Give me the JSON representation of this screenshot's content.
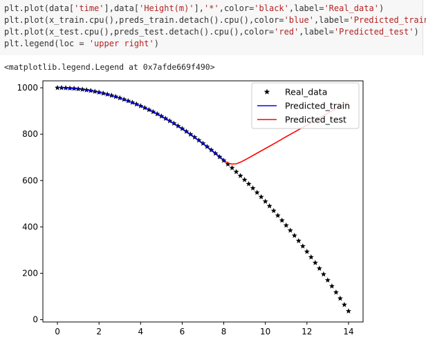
{
  "code": {
    "lines": [
      [
        "plt.plot(data[",
        "'time'",
        "],data[",
        "'Height(m)'",
        "],",
        "'*'",
        ",color=",
        "'black'",
        ",label=",
        "'Real_data'",
        ")"
      ],
      [
        "plt.plot(x_train.cpu(),preds_train.detach().cpu(),color=",
        "'blue'",
        ",label=",
        "'Predicted_train'",
        ")"
      ],
      [
        "plt.plot(x_test.cpu(),preds_test.detach().cpu(),color=",
        "'red'",
        ",label=",
        "'Predicted_test'",
        ")"
      ],
      [
        "plt.legend(loc = ",
        "'upper right'",
        ")"
      ]
    ]
  },
  "output": {
    "repr": "<matplotlib.legend.Legend at 0x7afde669f490>"
  },
  "chart_data": {
    "type": "line",
    "title": "",
    "xlabel": "",
    "ylabel": "",
    "xlim": [
      -0.7,
      14.7
    ],
    "ylim": [
      -10,
      1030
    ],
    "xticks": [
      0,
      2,
      4,
      6,
      8,
      10,
      12,
      14
    ],
    "yticks": [
      0,
      200,
      400,
      600,
      800,
      1000
    ],
    "grid": false,
    "legend": {
      "placement": "upper right",
      "entries": [
        "Real_data",
        "Predicted_train",
        "Predicted_test"
      ]
    },
    "series": [
      {
        "name": "Real_data",
        "marker": "*",
        "color": "#000000",
        "x": [
          0.0,
          0.2,
          0.4,
          0.6,
          0.8,
          1.0,
          1.2,
          1.4,
          1.6,
          1.8,
          2.0,
          2.2,
          2.4,
          2.6,
          2.8,
          3.0,
          3.2,
          3.4,
          3.6,
          3.8,
          4.0,
          4.2,
          4.4,
          4.6,
          4.8,
          5.0,
          5.2,
          5.4,
          5.6,
          5.8,
          6.0,
          6.2,
          6.4,
          6.6,
          6.8,
          7.0,
          7.2,
          7.4,
          7.6,
          7.8,
          8.0,
          8.2,
          8.4,
          8.6,
          8.8,
          9.0,
          9.2,
          9.4,
          9.6,
          9.8,
          10.0,
          10.2,
          10.4,
          10.6,
          10.8,
          11.0,
          11.2,
          11.4,
          11.6,
          11.8,
          12.0,
          12.2,
          12.4,
          12.6,
          12.8,
          13.0,
          13.2,
          13.4,
          13.6,
          13.8,
          14.0
        ],
        "y": [
          1000.0,
          999.8,
          999.2,
          998.2,
          996.9,
          995.1,
          993.0,
          990.4,
          987.5,
          984.1,
          980.4,
          976.3,
          971.8,
          966.9,
          961.6,
          955.9,
          949.8,
          943.4,
          936.5,
          929.2,
          921.6,
          913.6,
          905.1,
          896.3,
          887.1,
          877.5,
          867.5,
          857.1,
          846.4,
          835.2,
          823.6,
          811.6,
          799.3,
          786.5,
          773.4,
          759.9,
          745.9,
          731.6,
          716.9,
          701.8,
          686.4,
          670.5,
          654.3,
          637.6,
          620.6,
          603.1,
          585.2,
          567.0,
          548.3,
          529.3,
          509.8,
          490.0,
          469.7,
          449.1,
          428.0,
          406.6,
          384.8,
          362.5,
          339.9,
          316.8,
          293.4,
          269.6,
          245.3,
          220.7,
          195.7,
          170.2,
          144.3,
          118.0,
          91.4,
          64.3,
          36.8
        ]
      },
      {
        "name": "Predicted_train",
        "color": "#0000ff",
        "x": [
          0,
          0.5,
          1,
          1.5,
          2,
          2.5,
          3,
          3.5,
          4,
          4.5,
          5,
          5.5,
          6,
          6.5,
          7,
          7.5,
          8,
          8.1
        ],
        "y": [
          1002,
          999,
          995,
          989,
          981,
          969,
          956,
          940,
          922,
          902,
          878,
          852,
          824,
          793,
          760,
          725,
          688,
          680
        ]
      },
      {
        "name": "Predicted_test",
        "color": "#ff0000",
        "x": [
          8.1,
          8.2,
          8.3,
          8.4,
          8.6,
          8.8,
          9.0,
          9.5,
          10,
          10.5,
          11,
          11.5,
          12,
          12.5,
          13,
          13.5,
          14
        ],
        "y": [
          680,
          676,
          673,
          671,
          672,
          679,
          688,
          713,
          738,
          763,
          789,
          814,
          839,
          865,
          890,
          915,
          940
        ]
      }
    ]
  }
}
